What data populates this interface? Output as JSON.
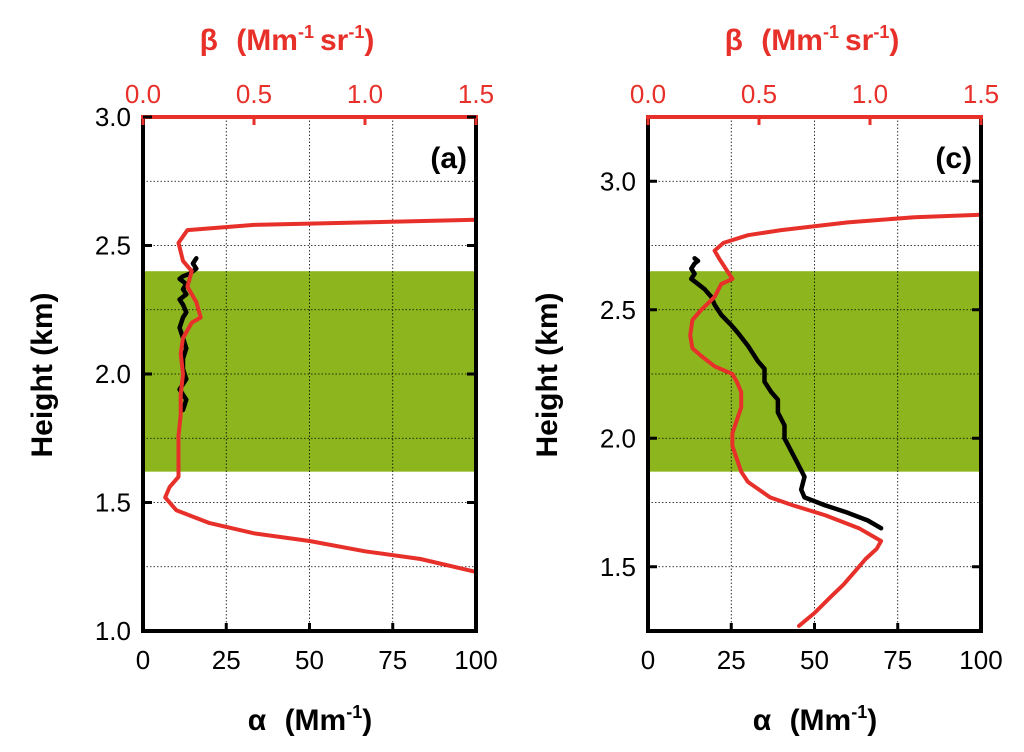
{
  "colors": {
    "beta": "#e8302a",
    "alpha": "#000000",
    "band": "#8db51e",
    "grid": "#000000"
  },
  "chart_data": [
    {
      "type": "line",
      "panel_label": "(a)",
      "ylabel": "Height (km)",
      "xlabel_bottom": {
        "symbol": "α",
        "unit": "(Mm",
        "exp": "-1",
        "close": ")"
      },
      "xlabel_top": {
        "symbol": "β",
        "unit1": "(Mm",
        "exp1": "-1",
        "unit2": "sr",
        "exp2": "-1",
        "close": ")"
      },
      "xlim_bottom": [
        0,
        100
      ],
      "xlim_top": [
        0,
        1.5
      ],
      "ylim": [
        1.0,
        3.0
      ],
      "xticks_bottom": [
        "0",
        "25",
        "50",
        "75",
        "100"
      ],
      "xticks_top": [
        "0.0",
        "0.5",
        "1.0",
        "1.5"
      ],
      "yticks": [
        "1.0",
        "1.5",
        "2.0",
        "2.5",
        "3.0"
      ],
      "grid": true,
      "shaded_band": {
        "y_min": 1.62,
        "y_max": 2.4
      },
      "series": [
        {
          "axis": "bottom",
          "color_key": "alpha",
          "x": [
            12,
            13,
            11,
            13,
            12,
            12,
            13,
            12,
            11,
            12,
            13,
            12,
            11,
            13,
            12,
            13,
            11,
            12,
            14,
            16,
            15,
            16
          ],
          "y": [
            1.86,
            1.9,
            1.94,
            1.98,
            2.02,
            2.06,
            2.1,
            2.14,
            2.18,
            2.22,
            2.24,
            2.27,
            2.29,
            2.31,
            2.33,
            2.35,
            2.37,
            2.38,
            2.39,
            2.41,
            2.43,
            2.45
          ]
        },
        {
          "axis": "top",
          "color_key": "beta",
          "x": [
            1.5,
            1.25,
            1.0,
            0.75,
            0.5,
            0.3,
            0.15,
            0.1,
            0.12,
            0.16,
            0.16,
            0.16,
            0.17,
            0.17,
            0.18,
            0.17,
            0.18,
            0.22,
            0.26,
            0.24,
            0.2,
            0.22,
            0.18,
            0.16,
            0.2,
            0.5,
            1.0,
            1.5
          ],
          "y": [
            1.23,
            1.28,
            1.31,
            1.35,
            1.38,
            1.42,
            1.47,
            1.52,
            1.56,
            1.6,
            1.68,
            1.76,
            1.84,
            1.92,
            2.0,
            2.08,
            2.14,
            2.2,
            2.22,
            2.28,
            2.34,
            2.4,
            2.44,
            2.51,
            2.56,
            2.58,
            2.59,
            2.6
          ]
        }
      ]
    },
    {
      "type": "line",
      "panel_label": "(c)",
      "ylabel": "Height (km)",
      "xlabel_bottom": {
        "symbol": "α",
        "unit": "(Mm",
        "exp": "-1",
        "close": ")"
      },
      "xlabel_top": {
        "symbol": "β",
        "unit1": "(Mm",
        "exp1": "-1",
        "unit2": "sr",
        "exp2": "-1",
        "close": ")"
      },
      "xlim_bottom": [
        0,
        100
      ],
      "xlim_top": [
        0,
        1.5
      ],
      "ylim": [
        1.25,
        3.25
      ],
      "xticks_bottom": [
        "0",
        "25",
        "50",
        "75",
        "100"
      ],
      "xticks_top": [
        "0.0",
        "0.5",
        "1.0",
        "1.5"
      ],
      "yticks": [
        "1.5",
        "2.0",
        "2.5",
        "3.0"
      ],
      "grid": true,
      "shaded_band": {
        "y_min": 1.87,
        "y_max": 2.65
      },
      "series": [
        {
          "axis": "bottom",
          "color_key": "alpha",
          "x": [
            70,
            66,
            60,
            53,
            47,
            46,
            47,
            45,
            43,
            41,
            41,
            39,
            39,
            37,
            35,
            35,
            33,
            30,
            27,
            25,
            22,
            20,
            19,
            17,
            15,
            13,
            14,
            13,
            14,
            15,
            14
          ],
          "y": [
            1.65,
            1.68,
            1.71,
            1.74,
            1.77,
            1.8,
            1.85,
            1.9,
            1.95,
            2.0,
            2.05,
            2.1,
            2.15,
            2.18,
            2.22,
            2.27,
            2.3,
            2.36,
            2.41,
            2.44,
            2.48,
            2.52,
            2.55,
            2.58,
            2.6,
            2.62,
            2.64,
            2.66,
            2.68,
            2.69,
            2.7
          ]
        },
        {
          "axis": "top",
          "color_key": "beta",
          "x": [
            0.68,
            0.75,
            0.82,
            0.88,
            0.93,
            0.98,
            1.03,
            1.05,
            0.95,
            0.8,
            0.65,
            0.55,
            0.5,
            0.45,
            0.42,
            0.4,
            0.38,
            0.38,
            0.4,
            0.42,
            0.42,
            0.4,
            0.38,
            0.3,
            0.24,
            0.2,
            0.19,
            0.2,
            0.24,
            0.3,
            0.33,
            0.38,
            0.35,
            0.32,
            0.3,
            0.34,
            0.45,
            0.6,
            0.9,
            1.2,
            1.5
          ],
          "y": [
            1.27,
            1.32,
            1.38,
            1.43,
            1.48,
            1.53,
            1.57,
            1.6,
            1.65,
            1.7,
            1.74,
            1.77,
            1.8,
            1.83,
            1.87,
            1.92,
            1.97,
            2.02,
            2.07,
            2.12,
            2.18,
            2.22,
            2.25,
            2.28,
            2.32,
            2.35,
            2.4,
            2.46,
            2.5,
            2.55,
            2.6,
            2.62,
            2.66,
            2.7,
            2.73,
            2.76,
            2.79,
            2.81,
            2.84,
            2.86,
            2.87
          ]
        }
      ]
    }
  ]
}
